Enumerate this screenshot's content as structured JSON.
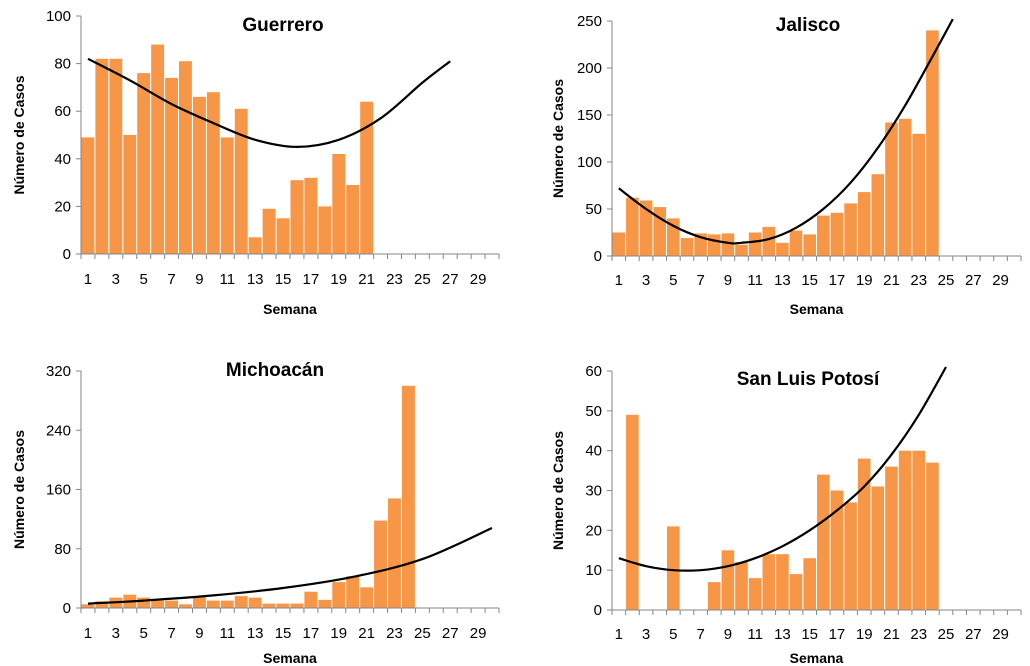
{
  "chart_data": [
    {
      "type": "bar",
      "title": "Guerrero",
      "xlabel": "Semana",
      "ylabel": "Número de Casos",
      "ylim": [
        0,
        100
      ],
      "yticks": [
        0,
        20,
        40,
        60,
        80,
        100
      ],
      "xlim": [
        1,
        30
      ],
      "xtick_labels": [
        "1",
        "3",
        "5",
        "7",
        "9",
        "11",
        "13",
        "15",
        "17",
        "19",
        "21",
        "23",
        "25",
        "27",
        "29"
      ],
      "bar_color": "#f79646",
      "trend_color": "#000000",
      "trend": "polynomial",
      "series": [
        {
          "x": [
            1,
            2,
            3,
            4,
            5,
            6,
            7,
            8,
            9,
            10,
            11,
            12,
            13,
            14,
            15,
            16,
            17,
            18,
            19,
            20,
            21
          ],
          "values": [
            49,
            82,
            82,
            50,
            76,
            88,
            74,
            81,
            66,
            68,
            49,
            61,
            7,
            19,
            15,
            31,
            32,
            20,
            42,
            29,
            64
          ]
        }
      ],
      "trendline": {
        "x": [
          1,
          4,
          7,
          10,
          13,
          16,
          19,
          22,
          25,
          27
        ],
        "values": [
          82,
          73,
          63,
          55,
          48,
          45,
          48,
          57,
          72,
          81
        ]
      }
    },
    {
      "type": "bar",
      "title": "Jalisco",
      "xlabel": "Semana",
      "ylabel": "Número de Casos",
      "ylim": [
        0,
        250
      ],
      "yticks": [
        0,
        50,
        100,
        150,
        200,
        250
      ],
      "xlim": [
        1,
        30
      ],
      "xtick_labels": [
        "1",
        "3",
        "5",
        "7",
        "9",
        "11",
        "13",
        "15",
        "17",
        "19",
        "21",
        "23",
        "25",
        "27",
        "29"
      ],
      "bar_color": "#f79646",
      "trend_color": "#000000",
      "trend": "polynomial",
      "series": [
        {
          "x": [
            1,
            2,
            3,
            4,
            5,
            6,
            7,
            8,
            9,
            10,
            11,
            12,
            13,
            14,
            15,
            16,
            17,
            18,
            19,
            20,
            21,
            22,
            23,
            24
          ],
          "values": [
            25,
            62,
            59,
            52,
            40,
            19,
            24,
            23,
            24,
            12,
            25,
            31,
            14,
            27,
            23,
            43,
            46,
            56,
            68,
            87,
            142,
            146,
            130,
            240
          ]
        }
      ],
      "trendline": {
        "x": [
          1,
          3,
          5,
          7,
          9,
          10,
          12,
          14,
          16,
          18,
          20,
          22,
          24,
          25.5
        ],
        "values": [
          72,
          50,
          32,
          20,
          14,
          14,
          18,
          30,
          50,
          78,
          115,
          160,
          212,
          252
        ]
      }
    },
    {
      "type": "bar",
      "title": "Michoacán",
      "xlabel": "Semana",
      "ylabel": "Número de Casos",
      "ylim": [
        0,
        320
      ],
      "yticks": [
        0,
        80,
        160,
        240,
        320
      ],
      "xlim": [
        1,
        30
      ],
      "xtick_labels": [
        "1",
        "3",
        "5",
        "7",
        "9",
        "11",
        "13",
        "15",
        "17",
        "19",
        "21",
        "23",
        "25",
        "27",
        "29"
      ],
      "bar_color": "#f79646",
      "trend_color": "#000000",
      "trend": "exponential",
      "series": [
        {
          "x": [
            1,
            2,
            3,
            4,
            5,
            6,
            7,
            8,
            9,
            10,
            11,
            12,
            13,
            14,
            15,
            16,
            17,
            18,
            19,
            20,
            21,
            22,
            23,
            24
          ],
          "values": [
            5,
            9,
            14,
            18,
            14,
            10,
            10,
            5,
            16,
            10,
            10,
            16,
            14,
            6,
            6,
            6,
            22,
            11,
            35,
            43,
            28,
            118,
            148,
            300
          ]
        }
      ],
      "trendline": {
        "x": [
          1,
          5,
          10,
          15,
          20,
          25,
          30
        ],
        "values": [
          6,
          10,
          17,
          27,
          42,
          66,
          108
        ]
      }
    },
    {
      "type": "bar",
      "title": "San Luis Potosí",
      "xlabel": "Semana",
      "ylabel": "Número de Casos",
      "ylim": [
        0,
        60
      ],
      "yticks": [
        0,
        10,
        20,
        30,
        40,
        50,
        60
      ],
      "xlim": [
        1,
        30
      ],
      "xtick_labels": [
        "1",
        "3",
        "5",
        "7",
        "9",
        "11",
        "13",
        "15",
        "17",
        "19",
        "21",
        "23",
        "25",
        "27",
        "29"
      ],
      "bar_color": "#f79646",
      "trend_color": "#000000",
      "trend": "polynomial",
      "series": [
        {
          "x": [
            2,
            5,
            8,
            9,
            10,
            11,
            12,
            13,
            14,
            15,
            16,
            17,
            18,
            19,
            20,
            21,
            22,
            23,
            24
          ],
          "values": [
            49,
            21,
            7,
            15,
            12,
            8,
            14,
            14,
            9,
            13,
            34,
            30,
            27,
            38,
            31,
            36,
            40,
            40,
            37
          ]
        }
      ],
      "trendline": {
        "x": [
          1,
          3,
          5,
          7,
          9,
          11,
          13,
          15,
          17,
          19,
          21,
          23,
          25
        ],
        "values": [
          13,
          11,
          10,
          10,
          11,
          13,
          16,
          20,
          25,
          31,
          39,
          49,
          61
        ]
      }
    }
  ]
}
